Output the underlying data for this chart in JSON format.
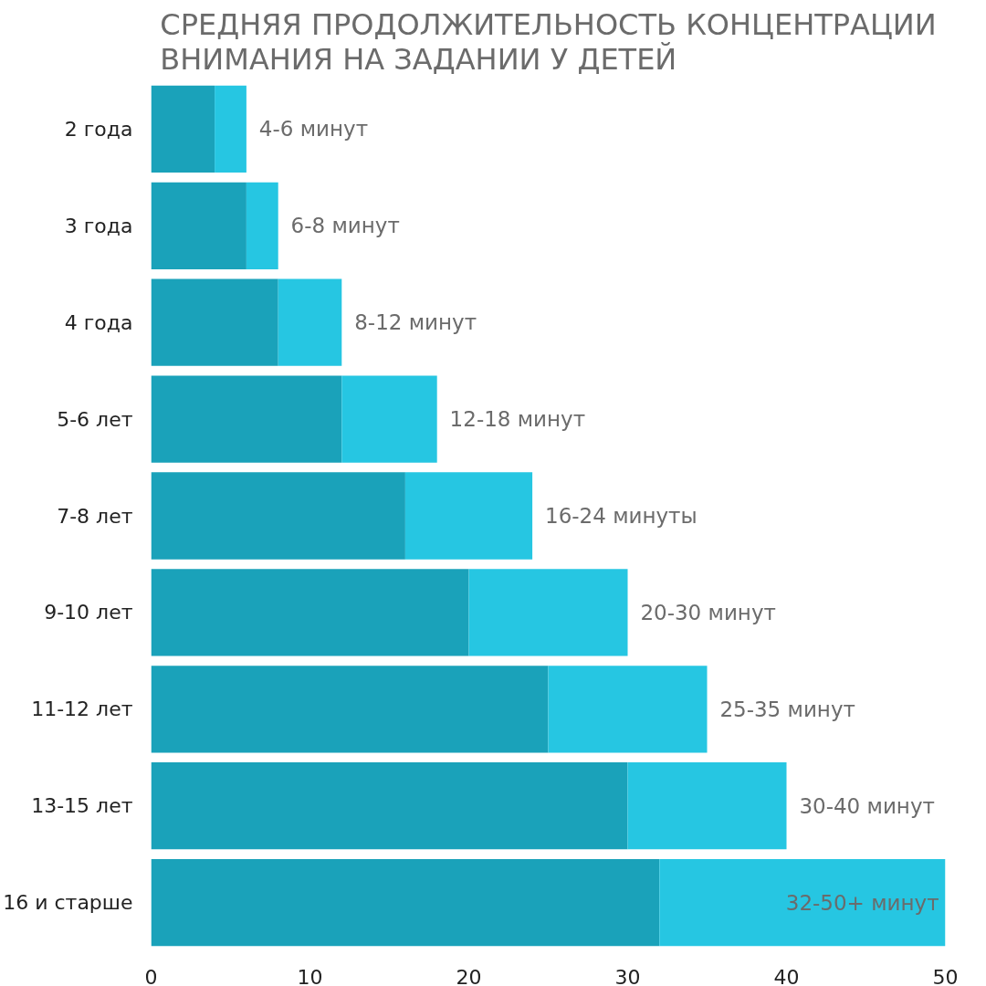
{
  "chart_data": {
    "type": "bar",
    "orientation": "horizontal",
    "stacked": true,
    "title": "СРЕДНЯЯ ПРОДОЛЖИТЕЛЬНОСТЬ КОНЦЕНТРАЦИИ ВНИМАНИЯ НА ЗАДАНИИ У ДЕТЕЙ",
    "categories": [
      "2 года",
      "3 года",
      "4 года",
      "5-6 лет",
      "7-8 лет",
      "9-10 лет",
      "11-12 лет",
      "13-15 лет",
      "16 и старше"
    ],
    "series": [
      {
        "color": "#1aa2ba",
        "values": [
          4,
          6,
          8,
          12,
          16,
          20,
          25,
          30,
          32
        ]
      },
      {
        "color": "#26c6e2",
        "values": [
          2,
          2,
          4,
          6,
          8,
          10,
          10,
          10,
          18
        ],
        "value_labels": [
          "4-6 минут",
          "6-8 минут",
          "8-12 минут",
          "12-18 минут",
          "16-24 минуты",
          "20-30 минут",
          "25-35 минут",
          "30-40 минут",
          "32-50+ минут"
        ]
      }
    ],
    "xlim": [
      0,
      50
    ],
    "xticks": [
      0,
      10,
      20,
      30,
      40,
      50
    ],
    "grid": false
  }
}
